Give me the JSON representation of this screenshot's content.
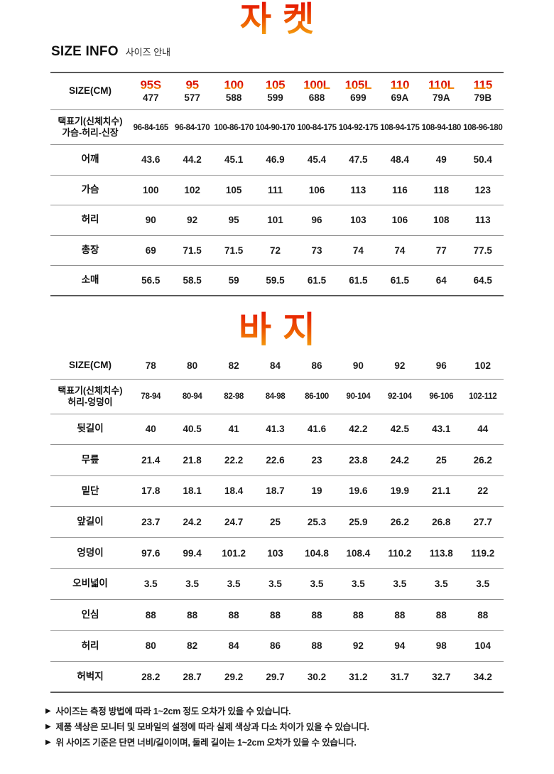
{
  "jacket": {
    "title": "자켓",
    "heading": "SIZE INFO",
    "heading_sub": "사이즈 안내",
    "table": {
      "header_label": "SIZE(CM)",
      "columns": [
        {
          "size": "95S",
          "code": "477"
        },
        {
          "size": "95",
          "code": "577"
        },
        {
          "size": "100",
          "code": "588"
        },
        {
          "size": "105",
          "code": "599"
        },
        {
          "size": "100L",
          "code": "688"
        },
        {
          "size": "105L",
          "code": "699"
        },
        {
          "size": "110",
          "code": "69A"
        },
        {
          "size": "110L",
          "code": "79A"
        },
        {
          "size": "115",
          "code": "79B"
        }
      ],
      "rows": [
        {
          "label_lines": [
            "택표기(신체치수)",
            "가슴-허리-신장"
          ],
          "values": [
            "96-84-165",
            "96-84-170",
            "100-86-170",
            "104-90-170",
            "100-84-175",
            "104-92-175",
            "108-94-175",
            "108-94-180",
            "108-96-180"
          ]
        },
        {
          "label_lines": [
            "어깨"
          ],
          "values": [
            "43.6",
            "44.2",
            "45.1",
            "46.9",
            "45.4",
            "47.5",
            "48.4",
            "49",
            "50.4"
          ]
        },
        {
          "label_lines": [
            "가슴"
          ],
          "values": [
            "100",
            "102",
            "105",
            "111",
            "106",
            "113",
            "116",
            "118",
            "123"
          ]
        },
        {
          "label_lines": [
            "허리"
          ],
          "values": [
            "90",
            "92",
            "95",
            "101",
            "96",
            "103",
            "106",
            "108",
            "113"
          ]
        },
        {
          "label_lines": [
            "총장"
          ],
          "values": [
            "69",
            "71.5",
            "71.5",
            "72",
            "73",
            "74",
            "74",
            "77",
            "77.5"
          ]
        },
        {
          "label_lines": [
            "소매"
          ],
          "values": [
            "56.5",
            "58.5",
            "59",
            "59.5",
            "61.5",
            "61.5",
            "61.5",
            "64",
            "64.5"
          ]
        }
      ]
    }
  },
  "pants": {
    "title": "바지",
    "table": {
      "header_label": "SIZE(CM)",
      "columns": [
        "78",
        "80",
        "82",
        "84",
        "86",
        "90",
        "92",
        "96",
        "102"
      ],
      "rows": [
        {
          "label_lines": [
            "택표기(신체치수)",
            "허리-엉덩이"
          ],
          "values": [
            "78-94",
            "80-94",
            "82-98",
            "84-98",
            "86-100",
            "90-104",
            "92-104",
            "96-106",
            "102-112"
          ]
        },
        {
          "label_lines": [
            "뒷길이"
          ],
          "values": [
            "40",
            "40.5",
            "41",
            "41.3",
            "41.6",
            "42.2",
            "42.5",
            "43.1",
            "44"
          ]
        },
        {
          "label_lines": [
            "무릎"
          ],
          "values": [
            "21.4",
            "21.8",
            "22.2",
            "22.6",
            "23",
            "23.8",
            "24.2",
            "25",
            "26.2"
          ]
        },
        {
          "label_lines": [
            "밑단"
          ],
          "values": [
            "17.8",
            "18.1",
            "18.4",
            "18.7",
            "19",
            "19.6",
            "19.9",
            "21.1",
            "22"
          ]
        },
        {
          "label_lines": [
            "앞길이"
          ],
          "values": [
            "23.7",
            "24.2",
            "24.7",
            "25",
            "25.3",
            "25.9",
            "26.2",
            "26.8",
            "27.7"
          ]
        },
        {
          "label_lines": [
            "엉덩이"
          ],
          "values": [
            "97.6",
            "99.4",
            "101.2",
            "103",
            "104.8",
            "108.4",
            "110.2",
            "113.8",
            "119.2"
          ]
        },
        {
          "label_lines": [
            "오비넓이"
          ],
          "values": [
            "3.5",
            "3.5",
            "3.5",
            "3.5",
            "3.5",
            "3.5",
            "3.5",
            "3.5",
            "3.5"
          ]
        },
        {
          "label_lines": [
            "인심"
          ],
          "values": [
            "88",
            "88",
            "88",
            "88",
            "88",
            "88",
            "88",
            "88",
            "88"
          ]
        },
        {
          "label_lines": [
            "허리"
          ],
          "values": [
            "80",
            "82",
            "84",
            "86",
            "88",
            "92",
            "94",
            "98",
            "104"
          ]
        },
        {
          "label_lines": [
            "허벅지"
          ],
          "values": [
            "28.2",
            "28.7",
            "29.2",
            "29.7",
            "30.2",
            "31.2",
            "31.7",
            "32.7",
            "34.2"
          ]
        }
      ]
    }
  },
  "notes": {
    "bullet_icon": "▶",
    "items": [
      "사이즈는 측정 방법에 따라 1~2cm 정도 오차가 있을 수 있습니다.",
      "제품 색상은 모니터 및 모바일의 설정에 따라 실제 색상과 다소 차이가 있을 수 있습니다.",
      "위 사이즈 기준은 단면 너비/길이이며, 둘레 길이는 1~2cm 오차가 있을 수 있습니다."
    ]
  },
  "colors": {
    "title_gradient_top": "#e51400",
    "title_gradient_bottom": "#f6ad12",
    "size_label_gradient_top": "#d90f00",
    "size_label_gradient_bottom": "#ffd400",
    "table_line": "#909090",
    "table_line_strong": "#5a5a5a",
    "text": "#1a1a1a"
  }
}
